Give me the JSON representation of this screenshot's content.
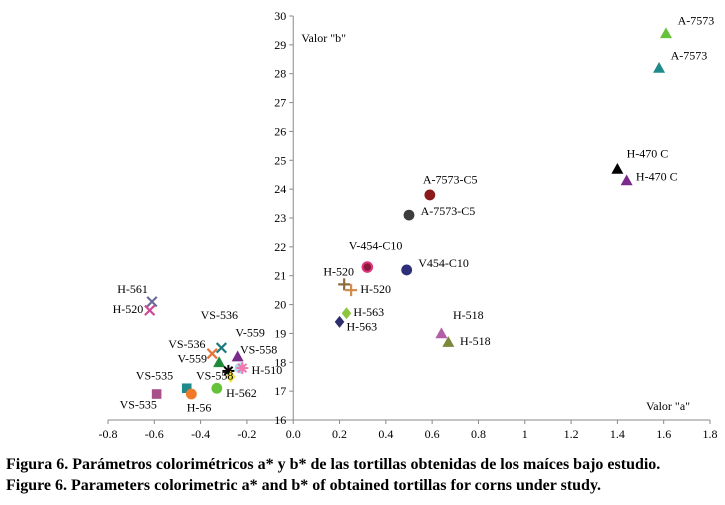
{
  "chart_data": {
    "type": "scatter",
    "xlabel": "Valor \"a\"",
    "ylabel": "Valor \"b\"",
    "xlim": [
      -0.8,
      1.8
    ],
    "ylim": [
      16,
      30
    ],
    "xticks": [
      "-0.8",
      "-0.6",
      "-0.4",
      "-0.2",
      "0.0",
      "0.2",
      "0.4",
      "0.6",
      "0.8",
      "1",
      "1.2",
      "1.4",
      "1.6",
      "1.8"
    ],
    "yticks": [
      "16",
      "17",
      "18",
      "19",
      "20",
      "21",
      "22",
      "23",
      "24",
      "25",
      "26",
      "27",
      "28",
      "29",
      "30"
    ],
    "points": [
      {
        "label": "A-7573",
        "x": 1.61,
        "y": 29.4,
        "marker": "triangle",
        "color": "#66c23a"
      },
      {
        "label": "A-7573",
        "x": 1.58,
        "y": 28.2,
        "marker": "triangle",
        "color": "#1e8a8a"
      },
      {
        "label": "H-470 C",
        "x": 1.4,
        "y": 24.7,
        "marker": "triangle",
        "color": "#000000"
      },
      {
        "label": "H-470 C",
        "x": 1.44,
        "y": 24.3,
        "marker": "triangle",
        "color": "#7a2a8a"
      },
      {
        "label": "A-7573-C5",
        "x": 0.59,
        "y": 23.8,
        "marker": "circle",
        "color": "#8b1a1a"
      },
      {
        "label": "A-7573-C5",
        "x": 0.5,
        "y": 23.1,
        "marker": "circle",
        "color": "#3c3c3c"
      },
      {
        "label": "V-454-C10",
        "x": 0.32,
        "y": 21.3,
        "marker": "circle-ring",
        "color": "#e0357e"
      },
      {
        "label": "V454-C10",
        "x": 0.49,
        "y": 21.2,
        "marker": "circle",
        "color": "#2e2e7a"
      },
      {
        "label": "H-520",
        "x": 0.22,
        "y": 20.7,
        "marker": "plus",
        "color": "#8c6a3c"
      },
      {
        "label": "H-520",
        "x": 0.25,
        "y": 20.5,
        "marker": "plus",
        "color": "#d08a4a"
      },
      {
        "label": "H-563",
        "x": 0.23,
        "y": 19.7,
        "marker": "diamond",
        "color": "#8cc63f"
      },
      {
        "label": "H-563",
        "x": 0.2,
        "y": 19.4,
        "marker": "diamond",
        "color": "#2e2e6e"
      },
      {
        "label": "H-518",
        "x": 0.64,
        "y": 19.0,
        "marker": "triangle",
        "color": "#b05fa8"
      },
      {
        "label": "H-518",
        "x": 0.67,
        "y": 18.7,
        "marker": "triangle",
        "color": "#7a8a3a"
      },
      {
        "label": "H-561",
        "x": -0.61,
        "y": 20.1,
        "marker": "x",
        "color": "#6a6a9a"
      },
      {
        "label": "H-520",
        "x": -0.62,
        "y": 19.8,
        "marker": "x",
        "color": "#d04a9a"
      },
      {
        "label": "VS-536",
        "x": -0.31,
        "y": 18.5,
        "marker": "x",
        "color": "#1e7a7a"
      },
      {
        "label": "VS-536",
        "x": -0.35,
        "y": 18.3,
        "marker": "x",
        "color": "#e8733a"
      },
      {
        "label": "V-559",
        "x": -0.24,
        "y": 18.2,
        "marker": "triangle",
        "color": "#7a2a8a"
      },
      {
        "label": "V-559",
        "x": -0.32,
        "y": 18.0,
        "marker": "triangle",
        "color": "#1f8a3a"
      },
      {
        "label": "VS-558",
        "x": -0.23,
        "y": 17.8,
        "marker": "circle",
        "color": "#a8e0f0"
      },
      {
        "label": "H-510",
        "x": -0.22,
        "y": 17.8,
        "marker": "star",
        "color": "#f07ab0"
      },
      {
        "label": "H-510",
        "x": -0.28,
        "y": 17.7,
        "marker": "star",
        "color": "#000000"
      },
      {
        "label": "VS-558",
        "x": -0.27,
        "y": 17.5,
        "marker": "diamond",
        "color": "#f0e040"
      },
      {
        "label": "VS-535",
        "x": -0.46,
        "y": 17.1,
        "marker": "square",
        "color": "#1e8a8a"
      },
      {
        "label": "H-562",
        "x": -0.33,
        "y": 17.1,
        "marker": "circle",
        "color": "#66c23a"
      },
      {
        "label": "H-56",
        "x": -0.44,
        "y": 16.9,
        "marker": "circle",
        "color": "#f07a2a"
      },
      {
        "label": "VS-535",
        "x": -0.59,
        "y": 16.9,
        "marker": "square",
        "color": "#a8508a"
      }
    ],
    "annotations": [
      {
        "text": "A-7573",
        "x": 1.66,
        "y": 29.7
      },
      {
        "text": "A-7573",
        "x": 1.63,
        "y": 28.5
      },
      {
        "text": "H-470 C",
        "x": 1.44,
        "y": 25.1
      },
      {
        "text": "H-470 C",
        "x": 1.48,
        "y": 24.3
      },
      {
        "text": "A-7573-C5",
        "x": 0.56,
        "y": 24.2
      },
      {
        "text": "A-7573-C5",
        "x": 0.55,
        "y": 23.1
      },
      {
        "text": "V-454-C10",
        "x": 0.24,
        "y": 21.9
      },
      {
        "text": "V454-C10",
        "x": 0.54,
        "y": 21.3
      },
      {
        "text": "H-520",
        "x": 0.13,
        "y": 21.0
      },
      {
        "text": "H-520",
        "x": 0.29,
        "y": 20.4
      },
      {
        "text": "H-563",
        "x": 0.26,
        "y": 19.6
      },
      {
        "text": "H-563",
        "x": 0.23,
        "y": 19.1
      },
      {
        "text": "H-518",
        "x": 0.69,
        "y": 19.5
      },
      {
        "text": "H-518",
        "x": 0.72,
        "y": 18.6
      },
      {
        "text": "H-561",
        "x": -0.76,
        "y": 20.4
      },
      {
        "text": "H-520",
        "x": -0.78,
        "y": 19.7
      },
      {
        "text": "VS-536",
        "x": -0.4,
        "y": 19.5
      },
      {
        "text": "V-559",
        "x": -0.25,
        "y": 18.9
      },
      {
        "text": "VS-536",
        "x": -0.54,
        "y": 18.5
      },
      {
        "text": "VS-558",
        "x": -0.23,
        "y": 18.3
      },
      {
        "text": "V-559",
        "x": -0.5,
        "y": 18.0
      },
      {
        "text": "H-510",
        "x": -0.18,
        "y": 17.6
      },
      {
        "text": "VS-535",
        "x": -0.68,
        "y": 17.4
      },
      {
        "text": "VS-558",
        "x": -0.42,
        "y": 17.4
      },
      {
        "text": "H-562",
        "x": -0.29,
        "y": 16.8
      },
      {
        "text": "VS-535",
        "x": -0.75,
        "y": 16.4
      },
      {
        "text": "H-56",
        "x": -0.46,
        "y": 16.3
      }
    ]
  },
  "captions": {
    "line1": "Figura 6. Parámetros colorimétricos a* y b* de las tortillas obtenidas de los maíces bajo estudio.",
    "line2": "Figure 6. Parameters colorimetric a* and b* of obtained tortillas for corns under study."
  }
}
